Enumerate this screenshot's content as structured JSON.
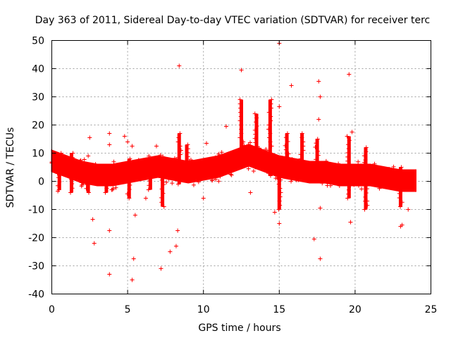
{
  "chart_data": {
    "type": "scatter",
    "title": "Day 363 of 2011, Sidereal Day-to-day VTEC variation (SDTVAR) for receiver terc",
    "xlabel": "GPS time / hours",
    "ylabel": "SDTVAR / TECUs",
    "xlim": [
      0,
      25
    ],
    "ylim": [
      -40,
      50
    ],
    "x_ticks": [
      0,
      5,
      10,
      15,
      20,
      25
    ],
    "y_ticks": [
      -40,
      -30,
      -20,
      -10,
      0,
      10,
      20,
      30,
      40,
      50
    ],
    "x_tick_labels": [
      "0",
      "5",
      "10",
      "15",
      "20",
      "25"
    ],
    "y_tick_labels": [
      "-40",
      "-30",
      "-20",
      "-10",
      "0",
      "10",
      "20",
      "30",
      "40",
      "50"
    ],
    "grid": true,
    "marker": "+",
    "color": "#ff0000",
    "band_trend": [
      {
        "x": 0.0,
        "y": 7
      },
      {
        "x": 1.0,
        "y": 5
      },
      {
        "x": 2.0,
        "y": 3
      },
      {
        "x": 3.0,
        "y": 2
      },
      {
        "x": 4.0,
        "y": 2
      },
      {
        "x": 5.0,
        "y": 3
      },
      {
        "x": 6.0,
        "y": 4
      },
      {
        "x": 7.0,
        "y": 5
      },
      {
        "x": 8.0,
        "y": 4
      },
      {
        "x": 9.0,
        "y": 3
      },
      {
        "x": 10.0,
        "y": 4
      },
      {
        "x": 11.0,
        "y": 5
      },
      {
        "x": 12.0,
        "y": 7
      },
      {
        "x": 13.0,
        "y": 9
      },
      {
        "x": 14.0,
        "y": 7
      },
      {
        "x": 15.0,
        "y": 5
      },
      {
        "x": 16.0,
        "y": 4
      },
      {
        "x": 17.0,
        "y": 3
      },
      {
        "x": 18.0,
        "y": 3
      },
      {
        "x": 19.0,
        "y": 2
      },
      {
        "x": 20.0,
        "y": 2
      },
      {
        "x": 21.0,
        "y": 2
      },
      {
        "x": 22.0,
        "y": 1
      },
      {
        "x": 23.0,
        "y": 0
      },
      {
        "x": 24.0,
        "y": 0
      }
    ],
    "spikes": [
      {
        "x": 0.5,
        "y_min": -3,
        "y_max": 10
      },
      {
        "x": 1.3,
        "y_min": -4,
        "y_max": 10
      },
      {
        "x": 2.4,
        "y_min": -4,
        "y_max": 6
      },
      {
        "x": 3.6,
        "y_min": -4,
        "y_max": 5
      },
      {
        "x": 5.1,
        "y_min": -6,
        "y_max": 8
      },
      {
        "x": 6.5,
        "y_min": -3,
        "y_max": 8
      },
      {
        "x": 7.3,
        "y_min": -9,
        "y_max": 2
      },
      {
        "x": 8.4,
        "y_min": -1,
        "y_max": 17
      },
      {
        "x": 8.9,
        "y_min": 3,
        "y_max": 13
      },
      {
        "x": 12.5,
        "y_min": 8,
        "y_max": 29
      },
      {
        "x": 13.5,
        "y_min": 5,
        "y_max": 24
      },
      {
        "x": 14.4,
        "y_min": 2,
        "y_max": 29
      },
      {
        "x": 15.0,
        "y_min": -10,
        "y_max": 5
      },
      {
        "x": 15.5,
        "y_min": 4,
        "y_max": 17
      },
      {
        "x": 16.5,
        "y_min": 2,
        "y_max": 17
      },
      {
        "x": 17.5,
        "y_min": 2,
        "y_max": 15
      },
      {
        "x": 19.6,
        "y_min": -6,
        "y_max": 16
      },
      {
        "x": 20.7,
        "y_min": -10,
        "y_max": 12
      },
      {
        "x": 23.0,
        "y_min": -9,
        "y_max": 5
      }
    ],
    "outliers": [
      {
        "x": 15.0,
        "y": 49
      },
      {
        "x": 8.4,
        "y": 41
      },
      {
        "x": 12.5,
        "y": 39.5
      },
      {
        "x": 19.6,
        "y": 38
      },
      {
        "x": 17.6,
        "y": 35.5
      },
      {
        "x": 15.8,
        "y": 34
      },
      {
        "x": 17.7,
        "y": 30
      },
      {
        "x": 15.0,
        "y": 26.5
      },
      {
        "x": 17.6,
        "y": 22
      },
      {
        "x": 11.5,
        "y": 19.5
      },
      {
        "x": 19.8,
        "y": 17.5
      },
      {
        "x": 3.8,
        "y": 17
      },
      {
        "x": 4.8,
        "y": 16
      },
      {
        "x": 2.5,
        "y": 15.5
      },
      {
        "x": 5.0,
        "y": 14
      },
      {
        "x": 10.2,
        "y": 13.5
      },
      {
        "x": 3.8,
        "y": 13
      },
      {
        "x": 5.3,
        "y": 12.5
      },
      {
        "x": 6.9,
        "y": 12.5
      },
      {
        "x": 2.4,
        "y": 9
      },
      {
        "x": 2.7,
        "y": -13.5
      },
      {
        "x": 5.5,
        "y": -12
      },
      {
        "x": 3.8,
        "y": -17.5
      },
      {
        "x": 8.3,
        "y": -17.5
      },
      {
        "x": 2.8,
        "y": -22
      },
      {
        "x": 8.2,
        "y": -23
      },
      {
        "x": 7.8,
        "y": -25
      },
      {
        "x": 5.4,
        "y": -27.5
      },
      {
        "x": 17.7,
        "y": -27.5
      },
      {
        "x": 7.2,
        "y": -31
      },
      {
        "x": 3.8,
        "y": -33
      },
      {
        "x": 5.3,
        "y": -35
      },
      {
        "x": 17.3,
        "y": -20.5
      },
      {
        "x": 19.7,
        "y": -14.5
      },
      {
        "x": 23.0,
        "y": -16
      },
      {
        "x": 15.0,
        "y": -15
      },
      {
        "x": 17.7,
        "y": -9.5
      },
      {
        "x": 13.1,
        "y": -4
      },
      {
        "x": 0.4,
        "y": -3.5
      },
      {
        "x": 14.7,
        "y": -11
      },
      {
        "x": 20.8,
        "y": -7
      },
      {
        "x": 23.5,
        "y": -10
      },
      {
        "x": 23.1,
        "y": -15.5
      },
      {
        "x": 6.2,
        "y": -6
      },
      {
        "x": 10.0,
        "y": -6
      }
    ]
  }
}
